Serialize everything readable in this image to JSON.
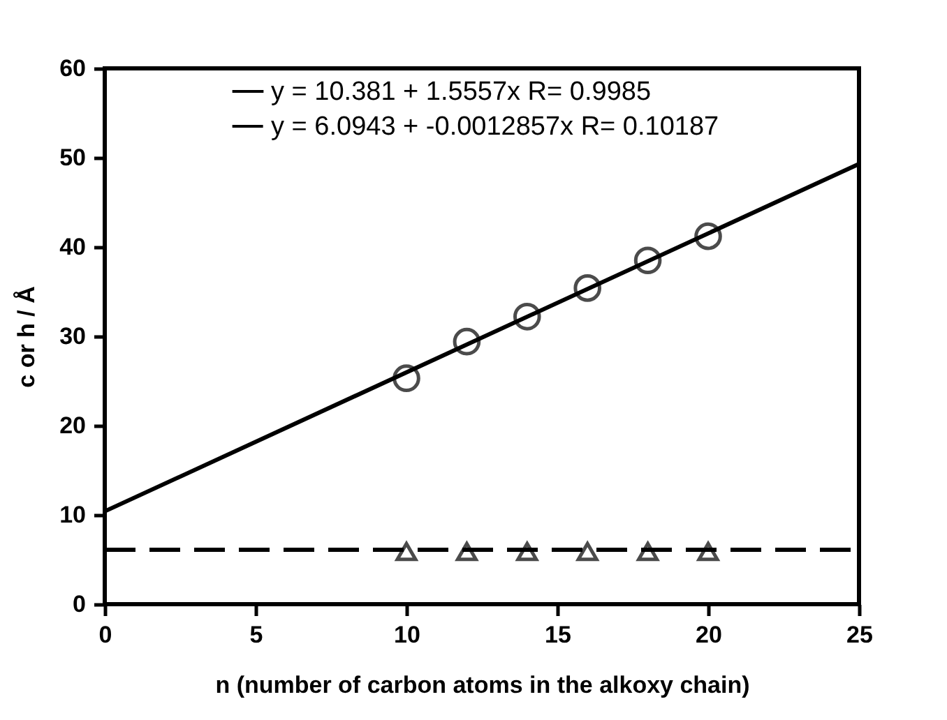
{
  "chart_data": {
    "type": "scatter",
    "xlabel": "n (number of carbon atoms in the alkoxy chain)",
    "ylabel": "c or h / Å",
    "xlim": [
      0,
      25
    ],
    "xticks": [
      0,
      5,
      10,
      15,
      20,
      25
    ],
    "ylim": [
      0,
      60
    ],
    "yticks": [
      0,
      10,
      20,
      30,
      40,
      50,
      60
    ],
    "grid": false,
    "legend": "top",
    "series": [
      {
        "color": "#000000",
        "marker": "circle",
        "x": [
          10,
          12,
          14,
          16,
          18,
          20
        ],
        "values": [
          25.3,
          29.4,
          32.2,
          35.4,
          38.5,
          41.2
        ]
      },
      {
        "color": "#000000",
        "marker": "triangle",
        "x": [
          10,
          12,
          14,
          16,
          18,
          20
        ],
        "values": [
          5.9,
          5.9,
          5.9,
          5.9,
          5.9,
          5.9
        ]
      },
      {
        "type": "line",
        "name": "y = 10.381 + 1.5557x R= 0.9985",
        "color": "#000000",
        "line_style": "solid",
        "marker": "none",
        "x": [
          0,
          25
        ],
        "values": [
          10.4,
          49.3
        ]
      },
      {
        "type": "line",
        "name": "y = 6.0943 + -0.0012857x R= 0.10187",
        "color": "#000000",
        "line_style": "dashed",
        "marker": "none",
        "x": [
          0,
          25
        ],
        "values": [
          6.1,
          6.1
        ]
      }
    ]
  }
}
